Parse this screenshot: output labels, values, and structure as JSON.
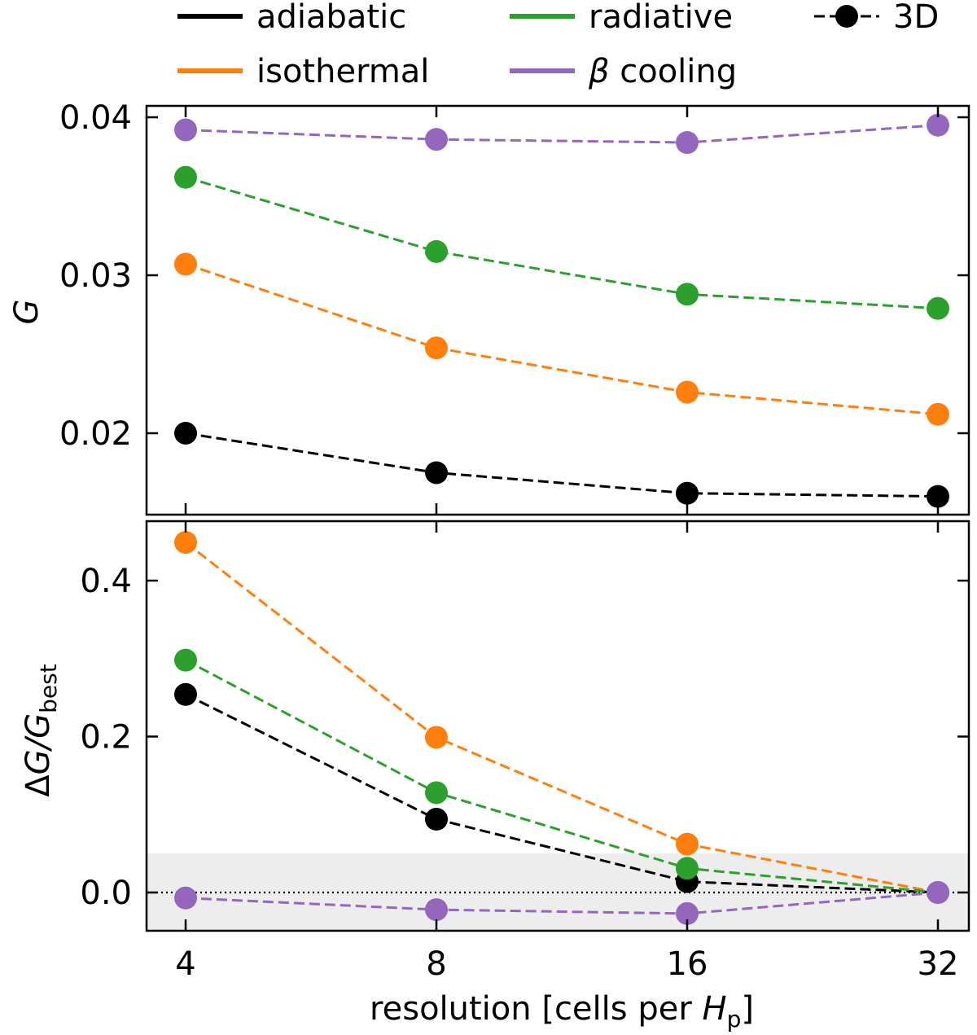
{
  "legend": {
    "items": [
      {
        "label": "adiabatic",
        "color": "#000000",
        "style": "line"
      },
      {
        "label": "radiative",
        "color": "#2ca02c",
        "style": "line"
      },
      {
        "label": "3D",
        "color": "#000000",
        "style": "dashed-marker"
      },
      {
        "label": "isothermal",
        "color": "#ff7f0e",
        "style": "line"
      },
      {
        "label": "β cooling",
        "color": "#9467bd",
        "style": "line"
      }
    ]
  },
  "colors": {
    "adiabatic": "#000000",
    "isothermal": "#ff7f0e",
    "radiative": "#2ca02c",
    "beta": "#9467bd",
    "band": "#ededed"
  },
  "chart_data": [
    {
      "type": "line",
      "panel": "top",
      "xscale": "log2",
      "x": [
        4,
        8,
        16,
        32
      ],
      "xticklabels": [
        "4",
        "8",
        "16",
        "32"
      ],
      "ylabel": "G",
      "yticks": [
        0.02,
        0.03,
        0.04
      ],
      "yticklabels": [
        "0.02",
        "0.03",
        "0.04"
      ],
      "ylim": [
        0.0147,
        0.0406
      ],
      "series": [
        {
          "name": "adiabatic",
          "color": "#000000",
          "values": [
            0.02,
            0.0175,
            0.0162,
            0.016
          ]
        },
        {
          "name": "isothermal",
          "color": "#ff7f0e",
          "values": [
            0.0307,
            0.0254,
            0.0226,
            0.0212
          ]
        },
        {
          "name": "radiative",
          "color": "#2ca02c",
          "values": [
            0.0362,
            0.0315,
            0.0288,
            0.0279
          ]
        },
        {
          "name": "β cooling",
          "color": "#9467bd",
          "values": [
            0.0392,
            0.0386,
            0.0384,
            0.0395
          ]
        }
      ]
    },
    {
      "type": "line",
      "panel": "bottom",
      "xscale": "log2",
      "x": [
        4,
        8,
        16,
        32
      ],
      "xticklabels": [
        "4",
        "8",
        "16",
        "32"
      ],
      "xlabel_main": "resolution [cells per ",
      "xlabel_var": "H",
      "xlabel_sub": "p",
      "xlabel_end": "]",
      "ylabel_prefix": "Δ",
      "ylabel_var": "G/G",
      "ylabel_sub": "best",
      "yticks": [
        0.0,
        0.2,
        0.4
      ],
      "yticklabels": [
        "0.0",
        "0.2",
        "0.4"
      ],
      "ylim": [
        -0.048,
        0.475
      ],
      "reference_line": 0.0,
      "band": [
        -0.05,
        0.05
      ],
      "series": [
        {
          "name": "adiabatic",
          "color": "#000000",
          "values": [
            0.254,
            0.094,
            0.014,
            0.0
          ]
        },
        {
          "name": "isothermal",
          "color": "#ff7f0e",
          "values": [
            0.449,
            0.199,
            0.062,
            0.0
          ]
        },
        {
          "name": "radiative",
          "color": "#2ca02c",
          "values": [
            0.298,
            0.128,
            0.031,
            0.0
          ]
        },
        {
          "name": "β cooling",
          "color": "#9467bd",
          "values": [
            -0.007,
            -0.022,
            -0.027,
            0.0
          ]
        }
      ]
    }
  ]
}
